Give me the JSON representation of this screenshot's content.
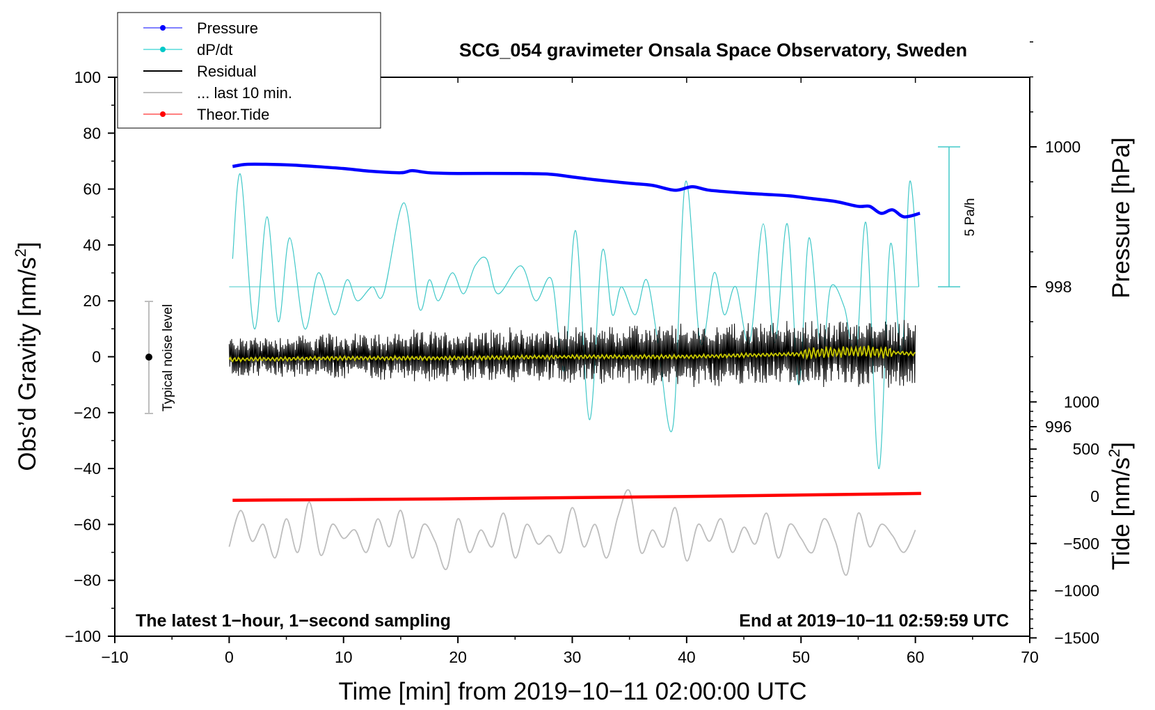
{
  "chart_data": {
    "type": "line",
    "title": "SCG_054 gravimeter Onsala Space Observatory, Sweden",
    "xlabel": "Time [min] from 2019−10−11 02:00:00 UTC",
    "ylabel_left": "Obs’d Gravity [nm/s",
    "ylabel_left_sup": "2",
    "ylabel_left_end": "]",
    "ylabel_right_pressure": "Pressure [hPa]",
    "ylabel_right_tide": "Tide [nm/s",
    "ylabel_right_tide_sup": "2",
    "ylabel_right_tide_end": "]",
    "xlim": [
      -10,
      70
    ],
    "ylim_left": [
      -100,
      100
    ],
    "xticks": [
      -10,
      0,
      10,
      20,
      30,
      40,
      50,
      60,
      70
    ],
    "xtick_labels": [
      "−10",
      "0",
      "10",
      "20",
      "30",
      "40",
      "50",
      "60",
      "70"
    ],
    "yticks_left": [
      100,
      80,
      60,
      40,
      20,
      0,
      -20,
      -40,
      -60,
      -80,
      -100
    ],
    "ytick_labels_left": [
      "100",
      "80",
      "60",
      "40",
      "20",
      "0",
      "−20",
      "−40",
      "−60",
      "−80",
      "−100"
    ],
    "pressure_axis": {
      "ticks": [
        1000,
        998,
        996
      ],
      "labels": [
        "1000",
        "998",
        "996"
      ],
      "range_hpa": [
        995.3,
        1001.4
      ]
    },
    "tide_axis": {
      "ticks": [
        1000,
        500,
        0,
        -500,
        -1000,
        -1500
      ],
      "labels": [
        "1000",
        "500",
        "0",
        "−500",
        "−1000",
        "−1500"
      ],
      "range": [
        -1500,
        1000
      ]
    },
    "footer_left": "The latest 1−hour, 1−second sampling",
    "footer_right": "End at 2019−10−11 02:59:59 UTC",
    "dpdt_scale_label": "5 Pa/h",
    "noise_label": "Typical noise level",
    "noise_range": [
      -20,
      20
    ],
    "legend": [
      {
        "label": "Pressure",
        "color": "#0000ff",
        "marker": true
      },
      {
        "label": "dP/dt",
        "color": "#00c8c8",
        "marker": true
      },
      {
        "label": "Residual",
        "color": "#000000",
        "marker": false
      },
      {
        "label": "... last 10 min.",
        "color": "#bebebe",
        "marker": false
      },
      {
        "label": "Theor.Tide",
        "color": "#ff0000",
        "marker": true
      }
    ],
    "series": [
      {
        "name": "Pressure",
        "axis": "pressure_hPa",
        "color": "#0000ff",
        "x": [
          0.3,
          1.5,
          3.5,
          5.5,
          7.5,
          10,
          12.5,
          15,
          16,
          17.5,
          20,
          25,
          28,
          30,
          32,
          35,
          37,
          39,
          40.5,
          42,
          45,
          47,
          49,
          51,
          53,
          55,
          56,
          57,
          58,
          59,
          60.4
        ],
        "values": [
          999.72,
          999.75,
          999.75,
          999.74,
          999.72,
          999.69,
          999.65,
          999.63,
          999.66,
          999.63,
          999.62,
          999.62,
          999.61,
          999.57,
          999.53,
          999.48,
          999.45,
          999.38,
          999.43,
          999.38,
          999.34,
          999.32,
          999.3,
          999.26,
          999.22,
          999.15,
          999.15,
          999.05,
          999.1,
          999.0,
          999.05
        ]
      },
      {
        "name": "dP/dt",
        "axis": "pressure_hPa",
        "color": "#00c8c8",
        "scale_note": "5 Pa/h full bar",
        "x": [
          0.3,
          1.0,
          2.2,
          3.3,
          4.3,
          5.3,
          6.6,
          7.8,
          9.2,
          10.3,
          11.2,
          12.5,
          13.5,
          15.3,
          16.6,
          17.5,
          18.3,
          19.5,
          20.5,
          21.5,
          22.5,
          23.5,
          25.5,
          26.8,
          28.2,
          29.3,
          30.3,
          31.5,
          32.6,
          33.5,
          34.3,
          35.5,
          36.5,
          37.5,
          38.8,
          39.9,
          41.2,
          42.4,
          43.3,
          44.3,
          45.5,
          46.7,
          47.7,
          48.8,
          49.8,
          50.7,
          51.8,
          52.6,
          53.8,
          54.8,
          55.7,
          56.8,
          57.8,
          58.8,
          59.5,
          60.3
        ],
        "values": [
          998.4,
          999.6,
          997.4,
          999.0,
          997.5,
          998.7,
          997.4,
          998.2,
          997.6,
          998.1,
          997.8,
          998.0,
          997.9,
          999.2,
          997.7,
          998.1,
          997.8,
          998.2,
          997.9,
          998.3,
          998.4,
          997.9,
          998.3,
          997.8,
          998.1,
          996.8,
          998.8,
          996.1,
          998.5,
          997.6,
          998.0,
          997.6,
          998.1,
          997.2,
          996.0,
          999.5,
          997.2,
          998.2,
          997.6,
          998.0,
          997.2,
          998.9,
          997.2,
          998.9,
          996.6,
          998.7,
          997.0,
          998.0,
          997.7,
          997.0,
          998.9,
          995.4,
          998.6,
          997.0,
          999.5,
          998.0
        ]
      },
      {
        "name": "Residual",
        "axis": "gravity",
        "color": "#000000",
        "x_range": [
          0,
          60
        ],
        "envelope_y": [
          -12,
          12
        ],
        "note": "1-second noisy residual, envelope grows to about +-15 near 55-60 min"
      },
      {
        "name": "... last 10 min.",
        "axis": "gravity",
        "color": "#bebebe",
        "x": [
          0,
          1,
          2,
          3,
          4,
          5,
          6,
          7,
          8,
          9,
          10,
          11,
          12,
          13,
          14,
          15,
          16,
          17,
          18,
          19,
          20,
          21,
          22,
          23,
          24,
          25,
          26,
          27,
          28,
          29,
          30,
          31,
          32,
          33,
          34,
          35,
          36,
          37,
          38,
          39,
          40,
          41,
          42,
          43,
          44,
          45,
          46,
          47,
          48,
          49,
          50,
          51,
          52,
          53,
          54,
          55,
          56,
          57,
          58,
          59,
          60
        ],
        "values": [
          -68,
          -55,
          -66,
          -60,
          -72,
          -58,
          -70,
          -52,
          -71,
          -60,
          -65,
          -62,
          -70,
          -58,
          -68,
          -55,
          -72,
          -60,
          -66,
          -76,
          -58,
          -70,
          -62,
          -68,
          -56,
          -72,
          -60,
          -67,
          -64,
          -70,
          -54,
          -68,
          -60,
          -72,
          -57,
          -48,
          -70,
          -62,
          -68,
          -54,
          -73,
          -60,
          -66,
          -58,
          -70,
          -61,
          -67,
          -56,
          -72,
          -60,
          -65,
          -70,
          -58,
          -66,
          -78,
          -56,
          -68,
          -60,
          -64,
          -70,
          -62
        ]
      },
      {
        "name": "Theor.Tide",
        "axis": "tide",
        "color": "#ff0000",
        "x": [
          0.3,
          10,
          20,
          30,
          40,
          50,
          60.5
        ],
        "values": [
          -42,
          -35,
          -26,
          -14,
          -2,
          14,
          30
        ]
      },
      {
        "name": "Residual (smoothed)",
        "axis": "gravity",
        "color": "#c8c800",
        "x": [
          0,
          10,
          20,
          30,
          40,
          45,
          50,
          52,
          55,
          58,
          60
        ],
        "values": [
          -1,
          -0.5,
          -0.5,
          0,
          0,
          0.5,
          1,
          1.5,
          2,
          1.5,
          1
        ]
      }
    ]
  }
}
